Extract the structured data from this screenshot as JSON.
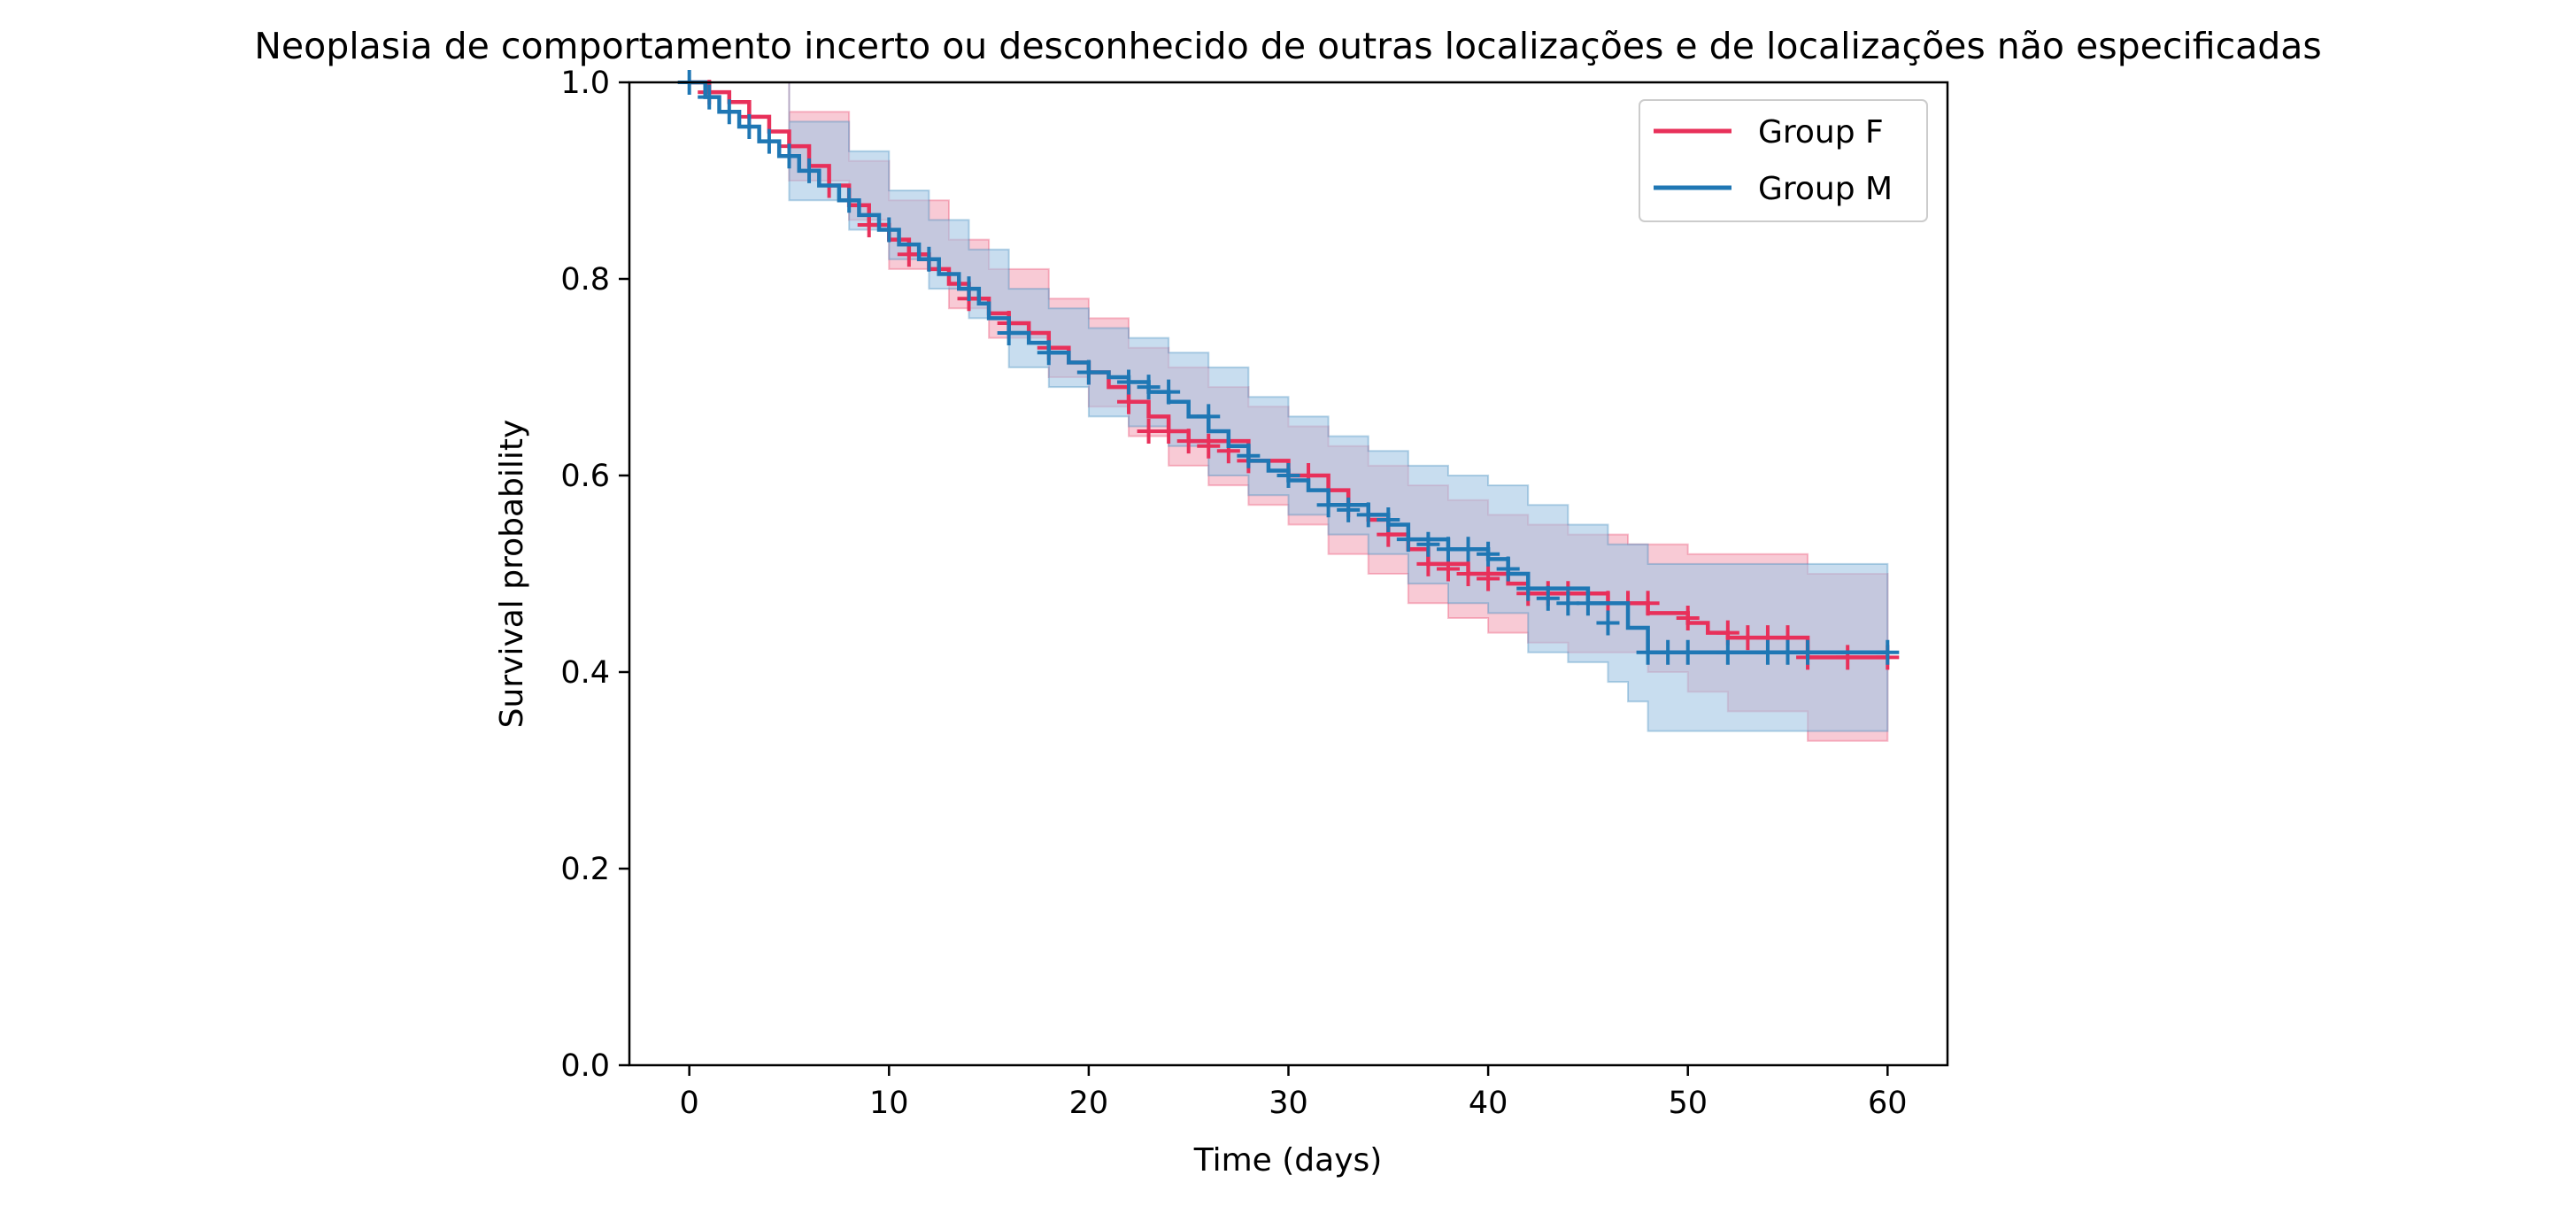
{
  "chart_data": {
    "type": "line",
    "subtype": "kaplan-meier",
    "title": "Neoplasia de comportamento incerto ou desconhecido de outras localizações e de localizações não especificadas",
    "xlabel": "Time (days)",
    "ylabel": "Survival probability",
    "xlim": [
      -3,
      63
    ],
    "ylim": [
      0,
      1.0
    ],
    "xticks": [
      0,
      10,
      20,
      30,
      40,
      50,
      60
    ],
    "xtick_labels": [
      "0",
      "10",
      "20",
      "30",
      "40",
      "50",
      "60"
    ],
    "yticks": [
      0.0,
      0.2,
      0.4,
      0.6,
      0.8,
      1.0
    ],
    "ytick_labels": [
      "0.0",
      "0.2",
      "0.4",
      "0.6",
      "0.8",
      "1.0"
    ],
    "grid": false,
    "legend_position": "top-right",
    "series": [
      {
        "name": "Group F",
        "color": "#e8305a",
        "band_color": "#f4a7b9",
        "steps": [
          [
            0,
            1.0
          ],
          [
            1,
            0.99
          ],
          [
            2,
            0.98
          ],
          [
            3,
            0.965
          ],
          [
            4,
            0.95
          ],
          [
            5,
            0.935
          ],
          [
            6,
            0.915
          ],
          [
            7,
            0.895
          ],
          [
            8,
            0.875
          ],
          [
            9,
            0.855
          ],
          [
            10,
            0.84
          ],
          [
            11,
            0.825
          ],
          [
            12,
            0.81
          ],
          [
            13,
            0.795
          ],
          [
            14,
            0.78
          ],
          [
            15,
            0.765
          ],
          [
            16,
            0.755
          ],
          [
            17,
            0.745
          ],
          [
            18,
            0.73
          ],
          [
            19,
            0.715
          ],
          [
            20,
            0.705
          ],
          [
            21,
            0.69
          ],
          [
            22,
            0.675
          ],
          [
            23,
            0.66
          ],
          [
            24,
            0.645
          ],
          [
            25,
            0.635
          ],
          [
            28,
            0.615
          ],
          [
            30,
            0.6
          ],
          [
            32,
            0.585
          ],
          [
            33,
            0.57
          ],
          [
            34,
            0.555
          ],
          [
            35,
            0.54
          ],
          [
            36,
            0.525
          ],
          [
            37,
            0.51
          ],
          [
            39,
            0.5
          ],
          [
            41,
            0.49
          ],
          [
            42,
            0.48
          ],
          [
            46,
            0.47
          ],
          [
            48,
            0.46
          ],
          [
            50,
            0.45
          ],
          [
            51,
            0.44
          ],
          [
            52,
            0.435
          ],
          [
            56,
            0.415
          ],
          [
            60,
            0.415
          ]
        ],
        "ci_upper": [
          [
            0,
            1.0
          ],
          [
            5,
            0.97
          ],
          [
            8,
            0.92
          ],
          [
            10,
            0.88
          ],
          [
            13,
            0.84
          ],
          [
            15,
            0.81
          ],
          [
            18,
            0.78
          ],
          [
            20,
            0.76
          ],
          [
            22,
            0.73
          ],
          [
            24,
            0.71
          ],
          [
            26,
            0.69
          ],
          [
            28,
            0.67
          ],
          [
            30,
            0.65
          ],
          [
            32,
            0.63
          ],
          [
            34,
            0.61
          ],
          [
            36,
            0.59
          ],
          [
            38,
            0.575
          ],
          [
            40,
            0.56
          ],
          [
            42,
            0.55
          ],
          [
            44,
            0.54
          ],
          [
            47,
            0.53
          ],
          [
            50,
            0.52
          ],
          [
            56,
            0.5
          ],
          [
            60,
            0.5
          ]
        ],
        "ci_lower": [
          [
            0,
            1.0
          ],
          [
            5,
            0.9
          ],
          [
            8,
            0.86
          ],
          [
            10,
            0.81
          ],
          [
            13,
            0.77
          ],
          [
            15,
            0.74
          ],
          [
            18,
            0.7
          ],
          [
            20,
            0.67
          ],
          [
            22,
            0.64
          ],
          [
            24,
            0.61
          ],
          [
            26,
            0.59
          ],
          [
            28,
            0.57
          ],
          [
            30,
            0.55
          ],
          [
            32,
            0.52
          ],
          [
            34,
            0.5
          ],
          [
            36,
            0.47
          ],
          [
            38,
            0.455
          ],
          [
            40,
            0.44
          ],
          [
            42,
            0.43
          ],
          [
            44,
            0.42
          ],
          [
            48,
            0.4
          ],
          [
            50,
            0.38
          ],
          [
            52,
            0.36
          ],
          [
            56,
            0.33
          ],
          [
            60,
            0.33
          ]
        ],
        "censored": [
          [
            1,
            0.99
          ],
          [
            3,
            0.965
          ],
          [
            5,
            0.935
          ],
          [
            7,
            0.895
          ],
          [
            9,
            0.855
          ],
          [
            11,
            0.825
          ],
          [
            14,
            0.78
          ],
          [
            16,
            0.755
          ],
          [
            18,
            0.73
          ],
          [
            20,
            0.705
          ],
          [
            22,
            0.675
          ],
          [
            23,
            0.645
          ],
          [
            24,
            0.645
          ],
          [
            25,
            0.635
          ],
          [
            26,
            0.63
          ],
          [
            27,
            0.625
          ],
          [
            28,
            0.615
          ],
          [
            31,
            0.6
          ],
          [
            33,
            0.57
          ],
          [
            35,
            0.54
          ],
          [
            37,
            0.51
          ],
          [
            38,
            0.505
          ],
          [
            39,
            0.5
          ],
          [
            40,
            0.495
          ],
          [
            42,
            0.48
          ],
          [
            43,
            0.48
          ],
          [
            44,
            0.48
          ],
          [
            46,
            0.47
          ],
          [
            47,
            0.47
          ],
          [
            48,
            0.47
          ],
          [
            50,
            0.455
          ],
          [
            52,
            0.44
          ],
          [
            53,
            0.435
          ],
          [
            54,
            0.435
          ],
          [
            55,
            0.435
          ],
          [
            56,
            0.415
          ],
          [
            58,
            0.415
          ],
          [
            60,
            0.415
          ]
        ]
      },
      {
        "name": "Group M",
        "color": "#1f77b4",
        "band_color": "#a3c6e4",
        "steps": [
          [
            0,
            1.0
          ],
          [
            0.8,
            0.985
          ],
          [
            1.5,
            0.97
          ],
          [
            2.5,
            0.955
          ],
          [
            3.5,
            0.94
          ],
          [
            4.5,
            0.925
          ],
          [
            5.5,
            0.91
          ],
          [
            6.5,
            0.895
          ],
          [
            7.5,
            0.88
          ],
          [
            8.5,
            0.865
          ],
          [
            9.5,
            0.85
          ],
          [
            10.5,
            0.835
          ],
          [
            11.5,
            0.82
          ],
          [
            12.5,
            0.805
          ],
          [
            13.5,
            0.79
          ],
          [
            14.5,
            0.775
          ],
          [
            15,
            0.76
          ],
          [
            16,
            0.745
          ],
          [
            17,
            0.735
          ],
          [
            18,
            0.725
          ],
          [
            19,
            0.715
          ],
          [
            20,
            0.705
          ],
          [
            21,
            0.7
          ],
          [
            22,
            0.695
          ],
          [
            23,
            0.685
          ],
          [
            24,
            0.675
          ],
          [
            25,
            0.66
          ],
          [
            26,
            0.645
          ],
          [
            27,
            0.63
          ],
          [
            28,
            0.615
          ],
          [
            29,
            0.605
          ],
          [
            30,
            0.595
          ],
          [
            31,
            0.585
          ],
          [
            32,
            0.57
          ],
          [
            34,
            0.56
          ],
          [
            35,
            0.55
          ],
          [
            36,
            0.535
          ],
          [
            38,
            0.525
          ],
          [
            40,
            0.515
          ],
          [
            41,
            0.5
          ],
          [
            42,
            0.485
          ],
          [
            45,
            0.47
          ],
          [
            47,
            0.445
          ],
          [
            48,
            0.42
          ],
          [
            60,
            0.42
          ]
        ],
        "ci_upper": [
          [
            0,
            1.0
          ],
          [
            5,
            0.96
          ],
          [
            8,
            0.93
          ],
          [
            10,
            0.89
          ],
          [
            12,
            0.86
          ],
          [
            14,
            0.83
          ],
          [
            16,
            0.79
          ],
          [
            18,
            0.77
          ],
          [
            20,
            0.75
          ],
          [
            22,
            0.74
          ],
          [
            24,
            0.725
          ],
          [
            26,
            0.71
          ],
          [
            28,
            0.68
          ],
          [
            30,
            0.66
          ],
          [
            32,
            0.64
          ],
          [
            34,
            0.625
          ],
          [
            36,
            0.61
          ],
          [
            38,
            0.6
          ],
          [
            40,
            0.59
          ],
          [
            42,
            0.57
          ],
          [
            44,
            0.55
          ],
          [
            46,
            0.53
          ],
          [
            48,
            0.51
          ],
          [
            60,
            0.5
          ]
        ],
        "ci_lower": [
          [
            0,
            1.0
          ],
          [
            5,
            0.88
          ],
          [
            8,
            0.85
          ],
          [
            10,
            0.82
          ],
          [
            12,
            0.79
          ],
          [
            14,
            0.76
          ],
          [
            16,
            0.71
          ],
          [
            18,
            0.69
          ],
          [
            20,
            0.66
          ],
          [
            22,
            0.65
          ],
          [
            24,
            0.63
          ],
          [
            26,
            0.6
          ],
          [
            28,
            0.58
          ],
          [
            30,
            0.56
          ],
          [
            32,
            0.54
          ],
          [
            34,
            0.52
          ],
          [
            36,
            0.49
          ],
          [
            38,
            0.47
          ],
          [
            40,
            0.46
          ],
          [
            42,
            0.42
          ],
          [
            44,
            0.41
          ],
          [
            46,
            0.39
          ],
          [
            47,
            0.37
          ],
          [
            48,
            0.34
          ],
          [
            60,
            0.34
          ]
        ],
        "censored": [
          [
            0,
            1.0
          ],
          [
            1,
            0.985
          ],
          [
            2,
            0.97
          ],
          [
            3,
            0.955
          ],
          [
            4,
            0.94
          ],
          [
            5,
            0.925
          ],
          [
            6,
            0.91
          ],
          [
            8,
            0.88
          ],
          [
            10,
            0.85
          ],
          [
            12,
            0.82
          ],
          [
            14,
            0.79
          ],
          [
            16,
            0.745
          ],
          [
            18,
            0.725
          ],
          [
            20,
            0.705
          ],
          [
            22,
            0.695
          ],
          [
            23,
            0.69
          ],
          [
            24,
            0.685
          ],
          [
            26,
            0.66
          ],
          [
            28,
            0.62
          ],
          [
            30,
            0.6
          ],
          [
            32,
            0.57
          ],
          [
            33,
            0.565
          ],
          [
            34,
            0.56
          ],
          [
            35,
            0.555
          ],
          [
            36,
            0.535
          ],
          [
            37,
            0.53
          ],
          [
            38,
            0.525
          ],
          [
            39,
            0.525
          ],
          [
            40,
            0.52
          ],
          [
            41,
            0.505
          ],
          [
            42,
            0.485
          ],
          [
            43,
            0.475
          ],
          [
            44,
            0.47
          ],
          [
            45,
            0.47
          ],
          [
            46,
            0.45
          ],
          [
            48,
            0.42
          ],
          [
            49,
            0.42
          ],
          [
            50,
            0.42
          ],
          [
            52,
            0.42
          ],
          [
            54,
            0.42
          ],
          [
            55,
            0.42
          ],
          [
            56,
            0.42
          ],
          [
            60,
            0.42
          ]
        ]
      }
    ]
  }
}
